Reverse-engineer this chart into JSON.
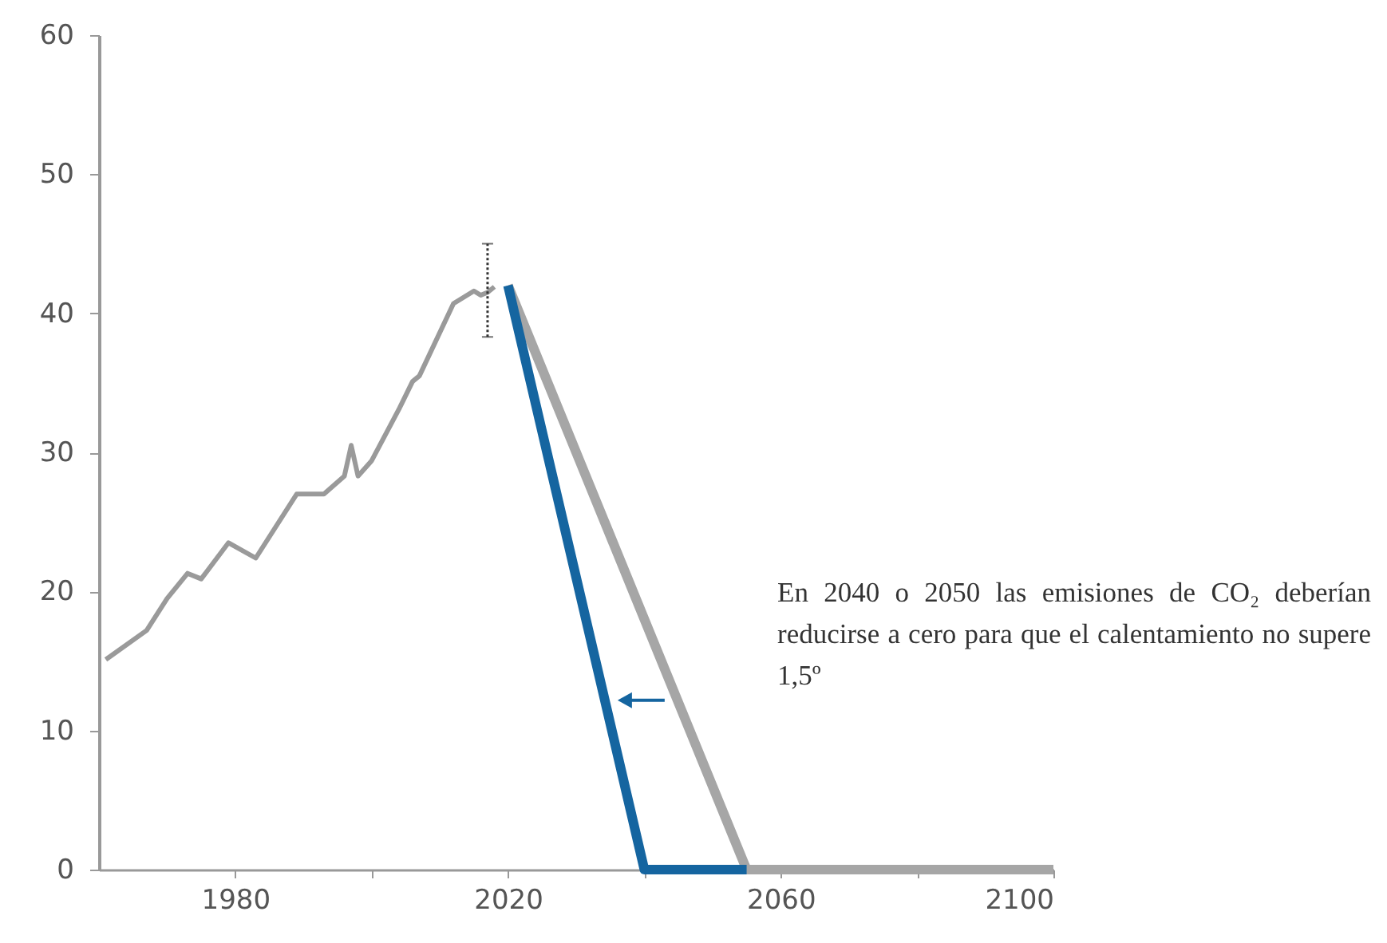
{
  "chart_data": {
    "type": "line",
    "annotations": [
      "En 2040 o 2050 las emisiones de CO₂ deberían reducirse a cero para que el calentamiento no supere 1,5º"
    ],
    "series": [
      {
        "color": "#9a9a9a",
        "x": [
          1961,
          1967,
          1970,
          1973,
          1975,
          1979,
          1983,
          1989,
          1993,
          1996,
          1997,
          1998,
          2000,
          2004,
          2006,
          2007,
          2012,
          2015,
          2016,
          2017,
          2018
        ],
        "values": [
          15.1,
          17.2,
          19.5,
          21.3,
          20.9,
          23.5,
          22.4,
          27.0,
          27.0,
          28.3,
          30.5,
          28.3,
          29.4,
          33.1,
          35.1,
          35.5,
          40.7,
          41.6,
          41.3,
          41.5,
          41.9
        ],
        "errors": [
          null,
          null,
          null,
          null,
          null,
          null,
          null,
          null,
          null,
          null,
          null,
          null,
          null,
          null,
          null,
          null,
          null,
          null,
          null,
          [
            38.3,
            45
          ],
          null
        ]
      },
      {
        "color": "#a6a6a6",
        "x": [
          2020,
          2055,
          2100
        ],
        "values": [
          42,
          0,
          0
        ]
      },
      {
        "color": "#1565a0",
        "x": [
          2020,
          2040,
          2055
        ],
        "values": [
          42,
          0,
          0
        ]
      }
    ],
    "xlim": [
      1960,
      2100
    ],
    "xticks": [
      1980,
      {
        "value": 2000,
        "label": null
      },
      2020,
      {
        "value": 2040,
        "label": null
      },
      2060,
      {
        "value": 2080,
        "label": null
      },
      2100
    ],
    "ylim": [
      0,
      60
    ],
    "yticks": [
      0,
      10,
      20,
      30,
      40,
      50,
      60
    ],
    "grid": false,
    "marker": "none",
    "line_style": "solid"
  }
}
